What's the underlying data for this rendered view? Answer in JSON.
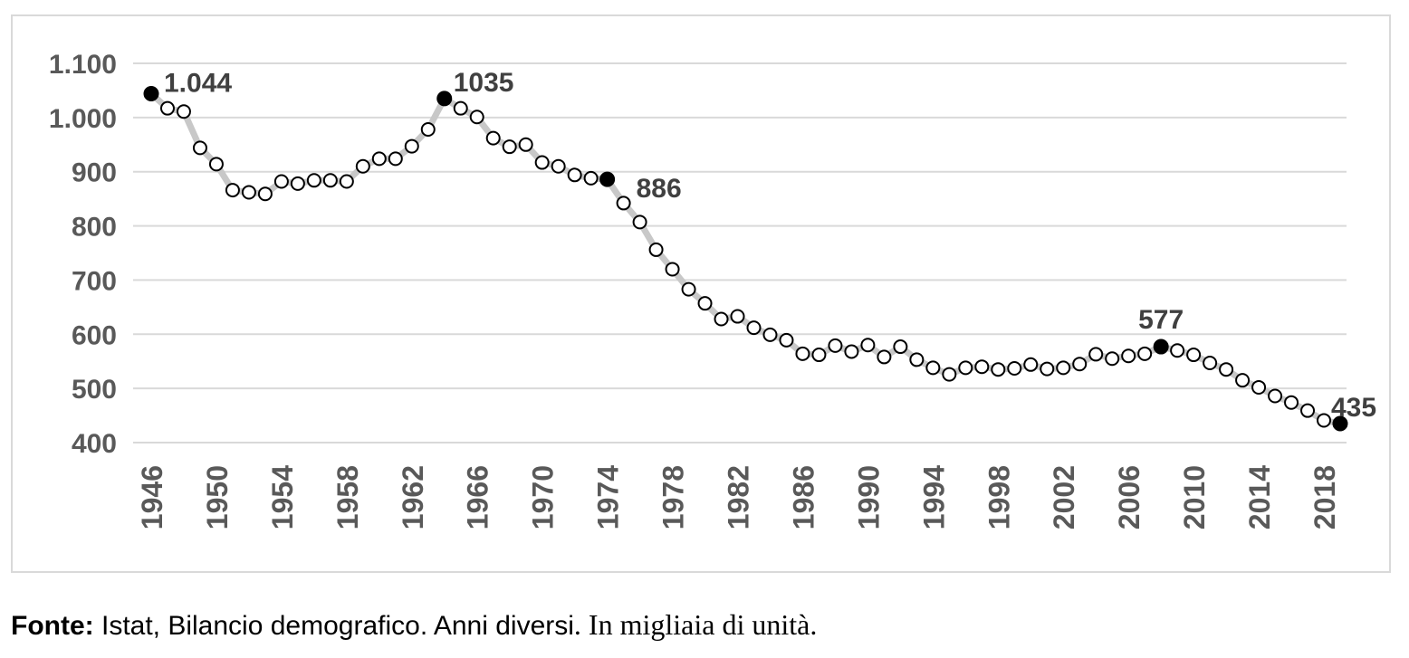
{
  "chart_data": {
    "type": "line",
    "x": [
      1946,
      1947,
      1948,
      1949,
      1950,
      1951,
      1952,
      1953,
      1954,
      1955,
      1956,
      1957,
      1958,
      1959,
      1960,
      1961,
      1962,
      1963,
      1964,
      1965,
      1966,
      1967,
      1968,
      1969,
      1970,
      1971,
      1972,
      1973,
      1974,
      1975,
      1976,
      1977,
      1978,
      1979,
      1980,
      1981,
      1982,
      1983,
      1984,
      1985,
      1986,
      1987,
      1988,
      1989,
      1990,
      1991,
      1992,
      1993,
      1994,
      1995,
      1996,
      1997,
      1998,
      1999,
      2000,
      2001,
      2002,
      2003,
      2004,
      2005,
      2006,
      2007,
      2008,
      2009,
      2010,
      2011,
      2012,
      2013,
      2014,
      2015,
      2016,
      2017,
      2018,
      2019
    ],
    "values": [
      1044,
      1017,
      1011,
      944,
      914,
      866,
      862,
      859,
      882,
      878,
      884,
      884,
      882,
      910,
      924,
      924,
      947,
      978,
      1035,
      1017,
      1001,
      962,
      946,
      950,
      917,
      910,
      894,
      888,
      886,
      842,
      807,
      756,
      720,
      683,
      657,
      628,
      633,
      612,
      599,
      589,
      564,
      562,
      579,
      568,
      580,
      558,
      577,
      553,
      538,
      526,
      538,
      540,
      535,
      537,
      544,
      536,
      538,
      545,
      563,
      555,
      560,
      564,
      577,
      570,
      562,
      547,
      535,
      515,
      502,
      486,
      474,
      459,
      441,
      435
    ],
    "highlighted_points": [
      {
        "x": 1946,
        "label": "1.044"
      },
      {
        "x": 1964,
        "label": "1035"
      },
      {
        "x": 1974,
        "label": "886"
      },
      {
        "x": 2008,
        "label": "577"
      },
      {
        "x": 2019,
        "label": "435"
      }
    ],
    "x_tick_labels": [
      "1946",
      "1950",
      "1954",
      "1958",
      "1962",
      "1966",
      "1970",
      "1974",
      "1978",
      "1982",
      "1986",
      "1990",
      "1994",
      "1998",
      "2002",
      "2006",
      "2010",
      "2014",
      "2018"
    ],
    "y_tick_labels": [
      "400",
      "500",
      "600",
      "700",
      "800",
      "900",
      "1.000",
      "1.100"
    ],
    "ylim": [
      400,
      1100
    ],
    "xlim": [
      1946,
      2019
    ],
    "grid": "horizontal",
    "legend": "none",
    "title": "",
    "xlabel": "",
    "ylabel": "",
    "colors": {
      "line": "#c8c8c8",
      "marker_fill": "#ffffff",
      "marker_stroke": "#000000",
      "highlight_fill": "#000000",
      "grid": "#d9d9d9",
      "tick_text": "#595959",
      "label_text": "#404040"
    }
  },
  "source": {
    "label": "Fonte:",
    "text": "Istat, Bilancio demografico. Anni diversi",
    "note": ". In migliaia di unità."
  }
}
